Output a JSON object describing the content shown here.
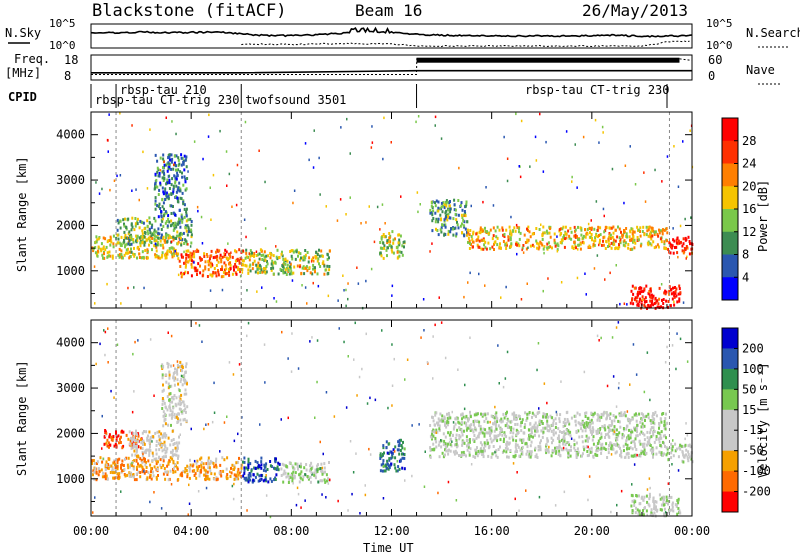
{
  "header": {
    "radar": "Blackstone (fitACF)",
    "beam": "Beam 16",
    "date": "26/May/2013"
  },
  "noise_panel": {
    "left_label": "N.Sky",
    "right_label": "N.Search",
    "left_ticks": [
      "10^5",
      "10^0"
    ],
    "right_ticks": [
      "10^5",
      "10^0"
    ]
  },
  "freq_panel": {
    "left_label_line1": "Freq.",
    "left_label_line2": "[MHz]",
    "right_label": "Nave",
    "left_ticks": [
      "18",
      "8"
    ],
    "right_ticks": [
      "60",
      "0"
    ]
  },
  "cpid": {
    "label": "CPID",
    "modes": [
      {
        "name": "rbsp-tau 210",
        "start_h": 1.0,
        "row": 1
      },
      {
        "name": "rbsp-tau CT-trig 230",
        "start_h": 0.0,
        "row": 2
      },
      {
        "name": "twofsound 3501",
        "start_h": 6.0,
        "row": 2
      },
      {
        "name": "rbsp-tau CT-trig 230",
        "start_h": 13.0,
        "row": 1
      }
    ]
  },
  "power_panel": {
    "ylabel": "Slant Range [km]",
    "colorbar_label": "Power [dB]",
    "colorbar_ticks": [
      "28",
      "24",
      "20",
      "16",
      "12",
      "8",
      "4"
    ]
  },
  "velocity_panel": {
    "ylabel": "Slant Range [km]",
    "colorbar_label": "Velocity [m s⁻¹]",
    "colorbar_ticks": [
      "200",
      "100",
      "50",
      "15",
      "-15",
      "-50",
      "-100",
      "-200"
    ]
  },
  "xaxis": {
    "label": "Time UT",
    "ticks": [
      "00:00",
      "04:00",
      "08:00",
      "12:00",
      "16:00",
      "20:00",
      "00:00"
    ]
  },
  "colors": {
    "power_scale": [
      "#0000ff",
      "#2a57b0",
      "#3c8c52",
      "#7ac84a",
      "#f5c400",
      "#ff7f00",
      "#ff3000",
      "#ff0000"
    ],
    "velocity_scale": [
      "#ff0000",
      "#ff6a00",
      "#f5a000",
      "#c8c8c8",
      "#c8c8c8",
      "#78c850",
      "#2f8f4f",
      "#2a57b0",
      "#0000d0"
    ],
    "ground_scatter": "#b4b4b4"
  },
  "chart_data": [
    {
      "type": "line",
      "title": "N.Sky / N.Search",
      "x_unit": "UT hours",
      "xlim": [
        0,
        24
      ],
      "series": [
        {
          "name": "N.Sky",
          "x": [
            0,
            1,
            2,
            3,
            4,
            5,
            6,
            7,
            8,
            9,
            10,
            11,
            12,
            13,
            14,
            15,
            16,
            17,
            18,
            19,
            20,
            21,
            22,
            23,
            24
          ],
          "log10_value": [
            3.2,
            3.3,
            3.5,
            3.3,
            3.4,
            3.5,
            3.0,
            2.6,
            2.6,
            2.8,
            3.2,
            3.6,
            3.4,
            2.9,
            2.7,
            2.6,
            2.6,
            2.5,
            2.5,
            2.5,
            2.6,
            2.7,
            2.4,
            2.5,
            2.6
          ]
        },
        {
          "name": "N.Search",
          "x": [
            6,
            8,
            10,
            12,
            13,
            22,
            23,
            24
          ],
          "log10_value": [
            0.5,
            0.4,
            0.6,
            0.5,
            0.0,
            0.0,
            1.0,
            1.2
          ]
        }
      ]
    },
    {
      "type": "line",
      "title": "Freq. / Nave",
      "x_unit": "UT hours",
      "xlim": [
        0,
        24
      ],
      "series": [
        {
          "name": "Freq. [MHz]",
          "x": [
            0,
            6,
            13,
            24
          ],
          "values": [
            10.5,
            10.5,
            11.5,
            11.5
          ]
        },
        {
          "name": "Nave",
          "x": [
            0,
            13,
            13.01,
            23.5,
            24
          ],
          "values": [
            10,
            10,
            55,
            55,
            50
          ]
        }
      ]
    },
    {
      "type": "heatmap",
      "title": "Power [dB]",
      "x_unit": "UT hours",
      "y_unit": "Slant Range [km]",
      "xlim": [
        0,
        24
      ],
      "ylim": [
        180,
        4500
      ],
      "clim": [
        0,
        30
      ],
      "patches": [
        {
          "t": [
            0,
            3.5
          ],
          "r": [
            1300,
            1800
          ],
          "value": 16
        },
        {
          "t": [
            1.0,
            4.0
          ],
          "r": [
            1600,
            2200
          ],
          "value": 12
        },
        {
          "t": [
            2.5,
            3.8
          ],
          "r": [
            2200,
            3600
          ],
          "value": 8
        },
        {
          "t": [
            3.5,
            6.0
          ],
          "r": [
            900,
            1500
          ],
          "value": 22
        },
        {
          "t": [
            6.0,
            9.5
          ],
          "r": [
            950,
            1500
          ],
          "value": 14
        },
        {
          "t": [
            11.5,
            12.5
          ],
          "r": [
            1300,
            1900
          ],
          "value": 14
        },
        {
          "t": [
            13.5,
            15.0
          ],
          "r": [
            1800,
            2600
          ],
          "value": 10
        },
        {
          "t": [
            15.0,
            23.0
          ],
          "r": [
            1500,
            2000
          ],
          "value": 18
        },
        {
          "t": [
            21.5,
            23.5
          ],
          "r": [
            200,
            700
          ],
          "value": 28
        },
        {
          "t": [
            23.0,
            24.0
          ],
          "r": [
            1400,
            1800
          ],
          "value": 26
        }
      ]
    },
    {
      "type": "heatmap",
      "title": "Velocity [m s-1]",
      "x_unit": "UT hours",
      "y_unit": "Slant Range [km]",
      "xlim": [
        0,
        24
      ],
      "ylim": [
        180,
        4500
      ],
      "clim": [
        -250,
        250
      ],
      "patches": [
        {
          "t": [
            0.5,
            2.0
          ],
          "r": [
            1700,
            2100
          ],
          "value": -200
        },
        {
          "t": [
            0,
            6.0
          ],
          "r": [
            1000,
            1500
          ],
          "value": -120
        },
        {
          "t": [
            1.5,
            3.5
          ],
          "r": [
            1500,
            2100
          ],
          "value": -40
        },
        {
          "t": [
            2.8,
            3.8
          ],
          "r": [
            2200,
            3600
          ],
          "value": -30
        },
        {
          "t": [
            6.0,
            7.5
          ],
          "r": [
            950,
            1500
          ],
          "value": 180
        },
        {
          "t": [
            7.5,
            9.5
          ],
          "r": [
            950,
            1400
          ],
          "value": 20
        },
        {
          "t": [
            11.5,
            12.5
          ],
          "r": [
            1200,
            1900
          ],
          "value": 150
        },
        {
          "t": [
            13.5,
            23.0
          ],
          "r": [
            1500,
            2500
          ],
          "value": 0
        },
        {
          "t": [
            21.5,
            23.5
          ],
          "r": [
            200,
            700
          ],
          "value": 0
        },
        {
          "t": [
            23.0,
            24.0
          ],
          "r": [
            1400,
            1800
          ],
          "value": 0
        }
      ]
    }
  ]
}
